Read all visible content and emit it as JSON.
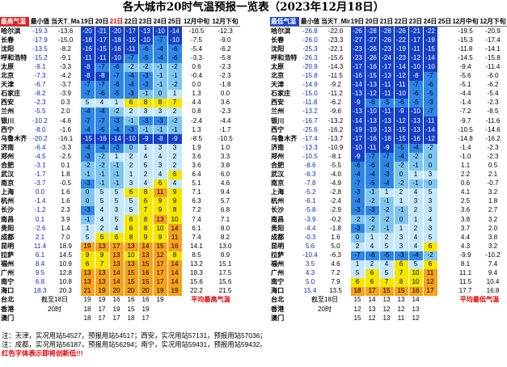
{
  "title": "各大城市20时气温预报一览表（2023年12月18日）",
  "palette": {
    "deep_blue": "#1540c8",
    "mid_blue": "#2e86e6",
    "light_blue": "#7fc7f2",
    "pale_blue": "#c5e8fb",
    "yellow": "#f5e600",
    "orange": "#f7a21b",
    "red_text": "#e00000"
  },
  "left_table": {
    "headers": [
      "最高气温",
      "最小值",
      "当天T_Max",
      "19日",
      "20日",
      "21日",
      "22日",
      "23日",
      "24日",
      "25日",
      "12月中旬",
      "12月下旬"
    ],
    "active_header_index": 5,
    "rows": [
      [
        "哈尔滨",
        "-19.3",
        "-13.6",
        "-20",
        "-21",
        "-20",
        "-17",
        "-13",
        "-10",
        "-14",
        "-10.5",
        "-12.3"
      ],
      [
        "长春",
        "-17.9",
        "-15.0",
        "-18",
        "-17",
        "-18",
        "-15",
        "-10",
        "-7",
        "-10",
        "-7.5",
        "-9.0"
      ],
      [
        "沈阳",
        "-13.5",
        "-8.2",
        "-16",
        "-15",
        "-16",
        "-11",
        "-6",
        "-4",
        "-6",
        "-5.4",
        "-6.2"
      ],
      [
        "呼和浩特",
        "-15.2",
        "-9.1",
        "-11",
        "-11",
        "-10",
        "-7",
        "-5",
        "-4",
        "-6",
        "-3.3",
        "-5.8"
      ],
      [
        "太原",
        "-9.1",
        "-3.3",
        "-8",
        "-7",
        "-6",
        "-2",
        "-2",
        "-1",
        "-2",
        "0.6",
        "-2.3"
      ],
      [
        "北京",
        "-7.3",
        "-4.2",
        "-8",
        "-8",
        "-7",
        "-4",
        "-3",
        "-1",
        "-1",
        "-0.4",
        "-2.3"
      ],
      [
        "天津",
        "-6.7",
        "-3.7",
        "-7",
        "-7",
        "-6",
        "-4",
        "-3",
        "-1",
        "-2",
        "0.0",
        "-1.8"
      ],
      [
        "石家庄",
        "-8.2",
        "-3.9",
        "-7",
        "-6",
        "-5",
        "-3",
        "-1",
        "0",
        "1",
        "1.3",
        "0.0"
      ],
      [
        "西安",
        "-2.3",
        "0.3",
        "5",
        "4",
        "1",
        "6",
        "8",
        "8",
        "7",
        "4.4",
        "3.6"
      ],
      [
        "兰州",
        "-5.5",
        "2.0",
        "-4",
        "-4",
        "-2",
        "2",
        "3",
        "3",
        "2",
        "0.8",
        "-2.3"
      ],
      [
        "银川",
        "-10.2",
        "-4.6",
        "-7",
        "-7",
        "-3",
        "-1",
        "-3",
        "-3",
        "-2",
        "-2.4",
        "-4.4"
      ],
      [
        "西宁",
        "-8.0",
        "-1.6",
        "-4",
        "-5",
        "-4",
        "-3",
        "-1",
        "-1",
        "-1",
        "1.3",
        "-1.7"
      ],
      [
        "乌鲁木齐",
        "-20.2",
        "-16.1",
        "-15",
        "-16",
        "-14",
        "-10",
        "-9",
        "-8",
        "-9",
        "-8.5",
        "-10.5"
      ],
      [
        "济南",
        "-6.4",
        "-3.3",
        "-4",
        "-4",
        "-3",
        "0",
        "1",
        "3",
        "3",
        "1.9",
        "1.0"
      ],
      [
        "郑州",
        "-4.5",
        "-2.5",
        "-3",
        "-2",
        "1",
        "2",
        "4",
        "4",
        "2",
        "3.6",
        "3.3"
      ],
      [
        "合肥",
        "-3.1",
        "0.1",
        "-2",
        "-2",
        "-1",
        "2",
        "5",
        "3",
        "2",
        "3.6",
        "3.8"
      ],
      [
        "武汉",
        "-1.7",
        "1.8",
        "-1",
        "-1",
        "-1",
        "1",
        "2",
        "4",
        "6",
        "6.4",
        "6.0"
      ],
      [
        "南京",
        "-3.7",
        "-0.5",
        "-3",
        "-1",
        "-1",
        "3",
        "4",
        "6",
        "4",
        "5.1",
        "4.6"
      ],
      [
        "上海",
        "0.0",
        "1.6",
        "0",
        "5",
        "5",
        "6",
        "8",
        "11",
        "9",
        "7.1",
        "9.4"
      ],
      [
        "杭州",
        "-1.4",
        "1.6",
        "0",
        "5",
        "5",
        "5",
        "6",
        "9",
        "9",
        "6.3",
        "5.7"
      ],
      [
        "长沙",
        "-1.2",
        "2.3",
        "-3",
        "4",
        "3",
        "5",
        "7",
        "9",
        "8",
        "7.2",
        "6.8"
      ],
      [
        "南昌",
        "0.1",
        "3.9",
        "-1",
        "4",
        "5",
        "6",
        "8",
        "13",
        "10",
        "7.4",
        "7.1"
      ],
      [
        "贵阳",
        "-2.6",
        "1.4",
        "1",
        "2",
        "4",
        "6",
        "8",
        "10",
        "14",
        "6.1",
        "8.0"
      ],
      [
        "成都",
        "2.1",
        "7.0",
        "5",
        "6",
        "6",
        "8",
        "9",
        "9",
        "11",
        "7.4",
        "8.2"
      ],
      [
        "昆明",
        "11.4",
        "18.9",
        "19",
        "13",
        "17",
        "13",
        "14",
        "15",
        "16",
        "14.1",
        "13.0"
      ],
      [
        "拉萨",
        "6.1",
        "14.5",
        "9",
        "9",
        "13",
        "10",
        "13",
        "12",
        "8",
        "8.5",
        "8.9"
      ],
      [
        "福州",
        "8.4",
        "10.9",
        "6",
        "7",
        "13",
        "13",
        "15",
        "17",
        "14",
        "13.2",
        "15.1"
      ],
      [
        "广州",
        "9.5",
        "12.8",
        "13",
        "13",
        "14",
        "15",
        "16",
        "17",
        "14",
        "18.3",
        "17.5"
      ],
      [
        "南宁",
        "6.8",
        "10.8",
        "13",
        "13",
        "14",
        "15",
        "15",
        "17",
        "14",
        "15.6",
        "15.6"
      ],
      [
        "海口",
        "18.3",
        "20.3",
        "21",
        "19",
        "20",
        "20",
        "20",
        "19",
        "19",
        "22.2",
        "21.5"
      ],
      [
        "台北",
        "",
        "",
        "19",
        "19",
        "16",
        "16",
        "16",
        "19",
        "",
        "平均最高气温",
        ""
      ],
      [
        "香港",
        "",
        "",
        "18",
        "17",
        "19",
        "15",
        "19",
        "",
        "",
        "",
        ""
      ],
      [
        "澳门",
        "",
        "",
        "18",
        "17",
        "17",
        "18",
        "17",
        "",
        "",
        "",
        ""
      ]
    ],
    "cutoff_line1": "截至18日",
    "cutoff_line2": "20时"
  },
  "right_table": {
    "headers": [
      "最低气温",
      "最小值",
      "当天T_Min",
      "19日",
      "20日",
      "21日",
      "22日",
      "23日",
      "24日",
      "25日",
      "12月中旬",
      "12月下旬"
    ],
    "active_header_index": -1,
    "rows": [
      [
        "哈尔滨",
        "-26.8",
        "-22.0",
        "-26",
        "-28",
        "-28",
        "-26",
        "-21",
        "-22",
        "",
        "-19.5",
        "-20.9"
      ],
      [
        "长春",
        "-26.0",
        "-23.3",
        "-27",
        "-27",
        "-26",
        "-22",
        "-17",
        "-19",
        "",
        "-15.3",
        "-17.4"
      ],
      [
        "沈阳",
        "-25.3",
        "-22.1",
        "-23",
        "-26",
        "-23",
        "-19",
        "-11",
        "-15",
        "",
        "-11.8",
        "-14.1"
      ],
      [
        "呼和浩特",
        "-26.3",
        "-15.6",
        "-23",
        "-26",
        "-24",
        "-23",
        "-12",
        "-14",
        "",
        "-14.5",
        "-15.8"
      ],
      [
        "太原",
        "-20.9",
        "-14.3",
        "-17",
        "-16",
        "-17",
        "-14",
        "-10",
        "-10",
        "",
        "-9.4",
        "-11.4"
      ],
      [
        "北京",
        "-15.8",
        "-11.5",
        "-16",
        "-15",
        "-13",
        "-12",
        "-8",
        "-7",
        "",
        "-5.6",
        "-6.0"
      ],
      [
        "天津",
        "-14.9",
        "-9.2",
        "-14",
        "-13",
        "-11",
        "-11",
        "-7",
        "-6",
        "",
        "-5.1",
        "-6.2"
      ],
      [
        "石家庄",
        "-15.0",
        "-11.2",
        "-13",
        "-12",
        "-11",
        "-10",
        "-6",
        "-5",
        "",
        "-4.4",
        "-5.4"
      ],
      [
        "西安",
        "-11.8",
        "-6.2",
        "-9",
        "-6",
        "-5",
        "-6",
        "-5",
        "-3",
        "",
        "-1.4",
        "-2.3"
      ],
      [
        "兰州",
        "-13.2",
        "-9.6",
        "-13",
        "-10",
        "-11",
        "-9",
        "-10",
        "-7",
        "",
        "-7.2",
        "-8.5"
      ],
      [
        "银川",
        "-16.7",
        "-13.2",
        "-14",
        "-13",
        "-13",
        "-12",
        "-13",
        "-11",
        "",
        "-9.7",
        "-11.6"
      ],
      [
        "西宁",
        "-25.6",
        "-16.2",
        "-19",
        "-19",
        "-13",
        "-15",
        "-13",
        "-14",
        "",
        "-10.5",
        "-14.6"
      ],
      [
        "乌鲁木齐",
        "-17.4",
        "-13.7",
        "-17",
        "-16",
        "-18",
        "-15",
        "-16",
        "-12",
        "",
        "-14.8",
        "-16.2"
      ],
      [
        "济南",
        "-13.3",
        "-10.9",
        "-10",
        "-11",
        "-9",
        "-5",
        "-4",
        "-2",
        "",
        "-1.4",
        "-2.3"
      ],
      [
        "郑州",
        "-10.5",
        "-8.1",
        "-9",
        "-7",
        "-7",
        "-4",
        "-2",
        "0",
        "",
        "-1.0",
        "-2.3"
      ],
      [
        "合肥",
        "-8.6",
        "-5.5",
        "-6",
        "-6",
        "-4",
        "-2",
        "-1",
        "0",
        "",
        "1.1",
        "0.5"
      ],
      [
        "武汉",
        "-6.3",
        "-4.0",
        "-4",
        "-4",
        "-3",
        "0",
        "1",
        "3",
        "",
        "2.2",
        "2.1"
      ],
      [
        "南京",
        "-7.8",
        "-4.9",
        "-7",
        "-5",
        "-4",
        "-2",
        "-1",
        "0",
        "",
        "0.6",
        "-0.7"
      ],
      [
        "上海",
        "-5.2",
        "-2.8",
        "-3",
        "-1",
        "1",
        "2",
        "4",
        "5",
        "",
        "4.1",
        "3.2"
      ],
      [
        "杭州",
        "-6.1",
        "-2.4",
        "-4",
        "-2",
        "-1",
        "1",
        "3",
        "3",
        "",
        "2.5",
        "1.8"
      ],
      [
        "长沙",
        "-5.8",
        "-2.9",
        "-3",
        "-3",
        "-2",
        "-1",
        "2",
        "3",
        "",
        "3.6",
        "2.7"
      ],
      [
        "南昌",
        "-3.9",
        "-0.2",
        "-2",
        "-2",
        "-2",
        "0",
        "1",
        "4",
        "",
        "3.8",
        "3.2"
      ],
      [
        "贵阳",
        "-4.4",
        "-1.8",
        "-3",
        "-2",
        "-1",
        "1",
        "2",
        "3",
        "",
        "3.7",
        "2.0"
      ],
      [
        "成都",
        "-0.3",
        "1.6",
        "0",
        "1",
        "2",
        "3",
        "4",
        "5",
        "",
        "4.4",
        "3.8"
      ],
      [
        "昆明",
        "5.6",
        "5.0",
        "2",
        "4",
        "5",
        "3",
        "4",
        "6",
        "",
        "4.3",
        "3.2"
      ],
      [
        "拉萨",
        "-10.4",
        "-6.3",
        "-7",
        "-6",
        "-5",
        "-3",
        "-4",
        "-2",
        "",
        "-9.9",
        "-10.2"
      ],
      [
        "福州",
        "3.5",
        "4.6",
        "1",
        "2",
        "4",
        "6",
        "5",
        "6",
        "",
        "8.1",
        "7.4"
      ],
      [
        "广州",
        "4.3",
        "7.2",
        "5",
        "6",
        "5",
        "7",
        "10",
        "11",
        "",
        "11.1",
        "9.4"
      ],
      [
        "南宁",
        "5.0",
        "7.9",
        "6",
        "6",
        "7",
        "8",
        "10",
        "12",
        "",
        "11.5",
        "10.4"
      ],
      [
        "海口",
        "15.4",
        "13.5",
        "18",
        "17",
        "15",
        "15",
        "16",
        "17",
        "",
        "17.7",
        "16.8"
      ],
      [
        "台北",
        "",
        "",
        "15",
        "14",
        "13",
        "13",
        "14",
        "",
        "",
        "平均最低气温",
        ""
      ],
      [
        "香港",
        "",
        "",
        "12",
        "13",
        "12",
        "12",
        "13",
        "",
        "",
        "",
        ""
      ],
      [
        "澳门",
        "",
        "",
        "15",
        "12",
        "13",
        "11",
        "12",
        "",
        "",
        "",
        ""
      ]
    ],
    "cutoff_line1": "截至18日",
    "cutoff_line2": "20时"
  },
  "footnotes": {
    "line1": "注：天津，实况用站54527，预报用站54517；西安，实况用站57131，预报用站57036；",
    "line2": "注：成都，实况用站56187，预报用站56294；南宁，实况用站59431，预报用站59432。",
    "line3": "红色字体表示即将创新低!!!"
  },
  "chart_data": [
    {
      "type": "table",
      "title": "各大城市20时气温预报一览表（2023年12月18日）",
      "series_title": "最高气温",
      "columns": [
        "最小值",
        "当天T_Max",
        "19日",
        "20日",
        "21日",
        "22日",
        "23日",
        "24日",
        "25日",
        "12月中旬",
        "12月下旬"
      ],
      "cities": [
        "哈尔滨",
        "长春",
        "沈阳",
        "呼和浩特",
        "太原",
        "北京",
        "天津",
        "石家庄",
        "西安",
        "兰州",
        "银川",
        "西宁",
        "乌鲁木齐",
        "济南",
        "郑州",
        "合肥",
        "武汉",
        "南京",
        "上海",
        "杭州",
        "长沙",
        "南昌",
        "贵阳",
        "成都",
        "昆明",
        "拉萨",
        "福州",
        "广州",
        "南宁",
        "海口",
        "台北",
        "香港",
        "澳门"
      ]
    },
    {
      "type": "table",
      "series_title": "最低气温",
      "columns": [
        "最小值",
        "当天T_Min",
        "19日",
        "20日",
        "21日",
        "22日",
        "23日",
        "24日",
        "25日",
        "12月中旬",
        "12月下旬"
      ],
      "cities": [
        "哈尔滨",
        "长春",
        "沈阳",
        "呼和浩特",
        "太原",
        "北京",
        "天津",
        "石家庄",
        "西安",
        "兰州",
        "银川",
        "西宁",
        "乌鲁木齐",
        "济南",
        "郑州",
        "合肥",
        "武汉",
        "南京",
        "上海",
        "杭州",
        "长沙",
        "南昌",
        "贵阳",
        "成都",
        "昆明",
        "拉萨",
        "福州",
        "广州",
        "南宁",
        "海口",
        "台北",
        "香港",
        "澳门"
      ]
    }
  ]
}
